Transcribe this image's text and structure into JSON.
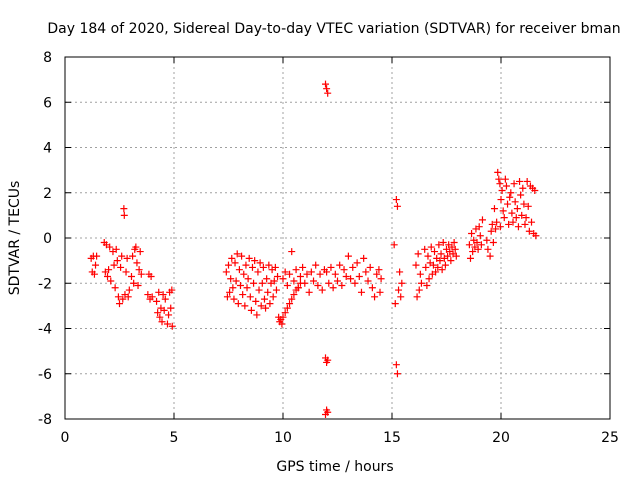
{
  "chart_data": {
    "type": "scatter",
    "title": "Day 184 of 2020, Sidereal Day-to-day VTEC variation (SDTVAR) for receiver bman",
    "xlabel": "GPS time / hours",
    "ylabel": "SDTVAR / TECUs",
    "xlim": [
      0,
      25
    ],
    "ylim": [
      -8,
      8
    ],
    "xticks": [
      0,
      5,
      10,
      15,
      20,
      25
    ],
    "yticks": [
      -8,
      -6,
      -4,
      -2,
      0,
      2,
      4,
      6,
      8
    ],
    "grid": true,
    "marker": "plus",
    "color": "#ff0000",
    "series": [
      {
        "name": "SDTVAR",
        "points": [
          [
            1.2,
            -0.9
          ],
          [
            1.25,
            -1.5
          ],
          [
            1.3,
            -0.8
          ],
          [
            1.35,
            -1.6
          ],
          [
            1.4,
            -1.2
          ],
          [
            1.45,
            -0.8
          ],
          [
            1.8,
            -0.2
          ],
          [
            1.85,
            -1.5
          ],
          [
            1.9,
            -0.3
          ],
          [
            1.95,
            -1.7
          ],
          [
            2.0,
            -1.4
          ],
          [
            2.05,
            -0.4
          ],
          [
            2.1,
            -1.9
          ],
          [
            2.2,
            -0.6
          ],
          [
            2.25,
            -1.2
          ],
          [
            2.3,
            -2.2
          ],
          [
            2.35,
            -0.5
          ],
          [
            2.4,
            -1.0
          ],
          [
            2.45,
            -2.6
          ],
          [
            2.5,
            -2.9
          ],
          [
            2.55,
            -1.3
          ],
          [
            2.6,
            -0.8
          ],
          [
            2.65,
            -2.7
          ],
          [
            2.7,
            1.3
          ],
          [
            2.72,
            1.0
          ],
          [
            2.75,
            -2.5
          ],
          [
            2.8,
            -1.5
          ],
          [
            2.85,
            -0.9
          ],
          [
            2.9,
            -2.6
          ],
          [
            2.95,
            -2.3
          ],
          [
            3.05,
            -1.7
          ],
          [
            3.1,
            -0.8
          ],
          [
            3.15,
            -2.0
          ],
          [
            3.2,
            -0.5
          ],
          [
            3.25,
            -0.4
          ],
          [
            3.3,
            -1.1
          ],
          [
            3.35,
            -2.1
          ],
          [
            3.4,
            -1.4
          ],
          [
            3.45,
            -0.6
          ],
          [
            3.5,
            -1.6
          ],
          [
            3.8,
            -2.5
          ],
          [
            3.85,
            -1.6
          ],
          [
            3.9,
            -2.7
          ],
          [
            3.95,
            -1.7
          ],
          [
            4.0,
            -2.6
          ],
          [
            4.2,
            -2.8
          ],
          [
            4.25,
            -3.3
          ],
          [
            4.3,
            -2.4
          ],
          [
            4.35,
            -3.5
          ],
          [
            4.4,
            -3.1
          ],
          [
            4.45,
            -3.7
          ],
          [
            4.5,
            -2.5
          ],
          [
            4.55,
            -3.2
          ],
          [
            4.6,
            -2.7
          ],
          [
            4.7,
            -3.8
          ],
          [
            4.75,
            -3.4
          ],
          [
            4.8,
            -2.4
          ],
          [
            4.85,
            -3.1
          ],
          [
            4.9,
            -2.3
          ],
          [
            4.92,
            -3.9
          ],
          [
            7.4,
            -1.5
          ],
          [
            7.45,
            -2.6
          ],
          [
            7.5,
            -1.2
          ],
          [
            7.55,
            -2.4
          ],
          [
            7.6,
            -1.8
          ],
          [
            7.65,
            -0.9
          ],
          [
            7.7,
            -2.2
          ],
          [
            7.75,
            -2.7
          ],
          [
            7.8,
            -1.1
          ],
          [
            7.85,
            -1.9
          ],
          [
            7.9,
            -0.7
          ],
          [
            7.95,
            -2.9
          ],
          [
            8.0,
            -1.4
          ],
          [
            8.05,
            -2.1
          ],
          [
            8.1,
            -0.8
          ],
          [
            8.15,
            -2.5
          ],
          [
            8.2,
            -1.6
          ],
          [
            8.25,
            -3.0
          ],
          [
            8.3,
            -1.2
          ],
          [
            8.35,
            -2.2
          ],
          [
            8.4,
            -1.8
          ],
          [
            8.45,
            -0.9
          ],
          [
            8.5,
            -2.6
          ],
          [
            8.55,
            -3.2
          ],
          [
            8.6,
            -1.3
          ],
          [
            8.65,
            -2.0
          ],
          [
            8.7,
            -1.0
          ],
          [
            8.75,
            -2.8
          ],
          [
            8.8,
            -3.4
          ],
          [
            8.85,
            -1.5
          ],
          [
            8.9,
            -2.3
          ],
          [
            8.95,
            -1.1
          ],
          [
            9.0,
            -3.0
          ],
          [
            9.05,
            -2.0
          ],
          [
            9.1,
            -1.3
          ],
          [
            9.15,
            -2.7
          ],
          [
            9.2,
            -3.1
          ],
          [
            9.25,
            -1.8
          ],
          [
            9.3,
            -2.4
          ],
          [
            9.35,
            -1.2
          ],
          [
            9.4,
            -2.9
          ],
          [
            9.45,
            -2.0
          ],
          [
            9.5,
            -1.4
          ],
          [
            9.55,
            -2.6
          ],
          [
            9.6,
            -1.9
          ],
          [
            9.65,
            -1.3
          ],
          [
            9.7,
            -2.3
          ],
          [
            9.75,
            -1.7
          ],
          [
            9.8,
            -3.5
          ],
          [
            9.85,
            -3.7
          ],
          [
            9.9,
            -3.6
          ],
          [
            9.95,
            -3.8
          ],
          [
            10.0,
            -3.5
          ],
          [
            10.1,
            -3.3
          ],
          [
            10.2,
            -3.1
          ],
          [
            10.3,
            -2.9
          ],
          [
            10.4,
            -2.7
          ],
          [
            10.5,
            -2.5
          ],
          [
            10.6,
            -2.3
          ],
          [
            10.7,
            -2.2
          ],
          [
            10.8,
            -2.0
          ],
          [
            10.0,
            -1.8
          ],
          [
            10.1,
            -1.5
          ],
          [
            10.2,
            -2.1
          ],
          [
            10.3,
            -1.6
          ],
          [
            10.4,
            -0.6
          ],
          [
            10.5,
            -1.9
          ],
          [
            10.6,
            -1.4
          ],
          [
            10.7,
            -2.2
          ],
          [
            10.8,
            -1.7
          ],
          [
            10.9,
            -1.3
          ],
          [
            11.0,
            -2.0
          ],
          [
            11.1,
            -1.6
          ],
          [
            11.2,
            -2.4
          ],
          [
            11.3,
            -1.5
          ],
          [
            11.4,
            -1.9
          ],
          [
            11.5,
            -1.2
          ],
          [
            11.6,
            -2.1
          ],
          [
            11.7,
            -1.6
          ],
          [
            11.8,
            -2.3
          ],
          [
            11.9,
            -1.4
          ],
          [
            11.95,
            6.8
          ],
          [
            12.0,
            6.6
          ],
          [
            12.05,
            6.4
          ],
          [
            11.95,
            -5.3
          ],
          [
            12.0,
            -5.5
          ],
          [
            12.05,
            -5.4
          ],
          [
            11.95,
            -7.8
          ],
          [
            12.0,
            -7.6
          ],
          [
            12.05,
            -7.7
          ],
          [
            12.0,
            -1.5
          ],
          [
            12.1,
            -2.0
          ],
          [
            12.2,
            -1.3
          ],
          [
            12.3,
            -2.2
          ],
          [
            12.4,
            -1.6
          ],
          [
            12.5,
            -1.9
          ],
          [
            12.6,
            -1.2
          ],
          [
            12.7,
            -2.1
          ],
          [
            12.8,
            -1.4
          ],
          [
            12.9,
            -1.7
          ],
          [
            13.0,
            -0.8
          ],
          [
            13.1,
            -1.8
          ],
          [
            13.2,
            -1.3
          ],
          [
            13.3,
            -2.0
          ],
          [
            13.4,
            -1.1
          ],
          [
            13.5,
            -1.7
          ],
          [
            13.6,
            -2.4
          ],
          [
            13.7,
            -0.9
          ],
          [
            13.8,
            -1.5
          ],
          [
            13.9,
            -1.9
          ],
          [
            14.0,
            -1.3
          ],
          [
            14.1,
            -2.2
          ],
          [
            14.2,
            -2.6
          ],
          [
            14.3,
            -1.6
          ],
          [
            14.4,
            -1.4
          ],
          [
            14.45,
            -2.4
          ],
          [
            14.5,
            -1.8
          ],
          [
            15.1,
            -0.3
          ],
          [
            15.15,
            -2.9
          ],
          [
            15.2,
            1.7
          ],
          [
            15.25,
            1.4
          ],
          [
            15.3,
            -2.3
          ],
          [
            15.35,
            -1.5
          ],
          [
            15.4,
            -2.6
          ],
          [
            15.45,
            -2.0
          ],
          [
            15.2,
            -5.6
          ],
          [
            15.25,
            -6.0
          ],
          [
            16.1,
            -1.2
          ],
          [
            16.15,
            -2.6
          ],
          [
            16.2,
            -0.7
          ],
          [
            16.25,
            -2.3
          ],
          [
            16.3,
            -1.6
          ],
          [
            16.35,
            -2.0
          ],
          [
            16.5,
            -0.5
          ],
          [
            16.55,
            -1.3
          ],
          [
            16.6,
            -2.1
          ],
          [
            16.65,
            -0.8
          ],
          [
            16.7,
            -1.8
          ],
          [
            16.75,
            -1.1
          ],
          [
            16.8,
            -0.4
          ],
          [
            16.85,
            -1.6
          ],
          [
            16.9,
            -1.2
          ],
          [
            16.95,
            -0.6
          ],
          [
            17.0,
            -1.5
          ],
          [
            17.05,
            -0.9
          ],
          [
            17.1,
            -1.3
          ],
          [
            17.15,
            -0.3
          ],
          [
            17.2,
            -1.0
          ],
          [
            17.25,
            -0.7
          ],
          [
            17.3,
            -1.4
          ],
          [
            17.35,
            -0.2
          ],
          [
            17.4,
            -0.9
          ],
          [
            17.45,
            -1.2
          ],
          [
            17.5,
            -0.5
          ],
          [
            17.55,
            -0.8
          ],
          [
            17.6,
            -0.3
          ],
          [
            17.65,
            -0.6
          ],
          [
            17.7,
            -1.0
          ],
          [
            17.75,
            -0.4
          ],
          [
            17.8,
            -0.7
          ],
          [
            17.85,
            -0.2
          ],
          [
            17.9,
            -0.5
          ],
          [
            17.95,
            -0.8
          ],
          [
            18.55,
            -0.3
          ],
          [
            18.6,
            -0.9
          ],
          [
            18.65,
            0.2
          ],
          [
            18.7,
            -0.6
          ],
          [
            18.75,
            -0.1
          ],
          [
            18.8,
            -0.4
          ],
          [
            18.85,
            0.4
          ],
          [
            18.9,
            -0.2
          ],
          [
            18.95,
            -0.5
          ],
          [
            19.0,
            0.5
          ],
          [
            19.05,
            0.1
          ],
          [
            19.1,
            -0.3
          ],
          [
            19.15,
            0.8
          ],
          [
            19.35,
            -0.1
          ],
          [
            19.4,
            -0.5
          ],
          [
            19.5,
            -0.8
          ],
          [
            19.55,
            0.3
          ],
          [
            19.6,
            0.6
          ],
          [
            19.65,
            -0.2
          ],
          [
            19.7,
            1.3
          ],
          [
            19.75,
            0.4
          ],
          [
            19.8,
            0.7
          ],
          [
            19.85,
            2.9
          ],
          [
            19.9,
            2.6
          ],
          [
            19.95,
            2.4
          ],
          [
            19.97,
            0.5
          ],
          [
            20.0,
            1.7
          ],
          [
            20.05,
            2.1
          ],
          [
            20.1,
            1.2
          ],
          [
            20.15,
            0.9
          ],
          [
            20.2,
            2.6
          ],
          [
            20.25,
            2.3
          ],
          [
            20.3,
            1.5
          ],
          [
            20.35,
            0.6
          ],
          [
            20.4,
            1.8
          ],
          [
            20.45,
            2.0
          ],
          [
            20.5,
            1.1
          ],
          [
            20.55,
            0.7
          ],
          [
            20.6,
            2.4
          ],
          [
            20.65,
            1.6
          ],
          [
            20.7,
            0.9
          ],
          [
            20.75,
            1.3
          ],
          [
            20.8,
            0.5
          ],
          [
            20.85,
            2.5
          ],
          [
            20.9,
            1.9
          ],
          [
            20.95,
            1.0
          ],
          [
            21.0,
            2.2
          ],
          [
            21.05,
            1.5
          ],
          [
            21.1,
            0.6
          ],
          [
            21.15,
            0.9
          ],
          [
            21.2,
            2.5
          ],
          [
            21.25,
            1.4
          ],
          [
            21.3,
            0.3
          ],
          [
            21.35,
            2.3
          ],
          [
            21.4,
            0.7
          ],
          [
            21.45,
            2.2
          ],
          [
            21.5,
            0.2
          ],
          [
            21.55,
            2.1
          ],
          [
            21.6,
            0.1
          ]
        ]
      }
    ]
  }
}
